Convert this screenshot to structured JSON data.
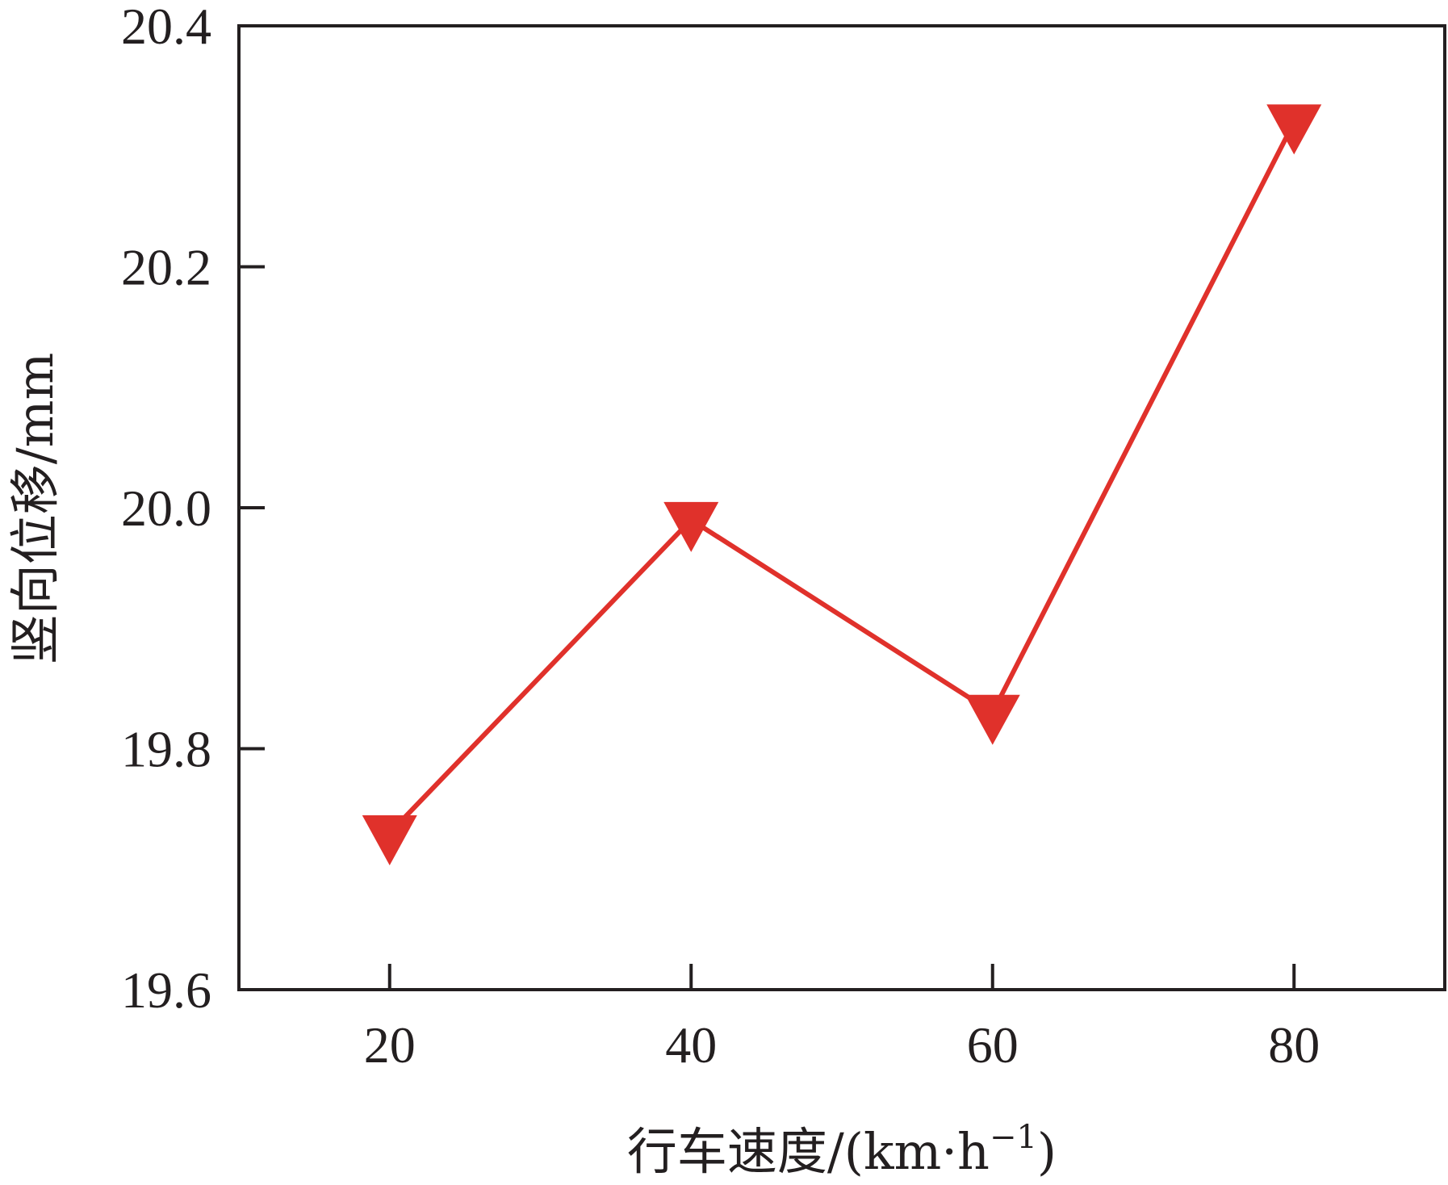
{
  "chart_data": {
    "type": "line",
    "xlabel": "行车速度/(km·h",
    "xlabel_sup": "−1",
    "xlabel_close": ")",
    "ylabel": "竖向位移/mm",
    "x": [
      20,
      40,
      60,
      80
    ],
    "series": [
      {
        "values": [
          19.73,
          19.99,
          19.83,
          20.32
        ],
        "marker": "triangle-down",
        "color": "#e0312b"
      }
    ],
    "xlim": [
      10,
      90
    ],
    "ylim": [
      19.6,
      20.4
    ],
    "x_ticks": [
      "20",
      "40",
      "60",
      "80"
    ],
    "y_ticks": [
      "19.6",
      "19.8",
      "20.0",
      "20.2",
      "20.4"
    ],
    "grid": false,
    "legend": "none"
  }
}
